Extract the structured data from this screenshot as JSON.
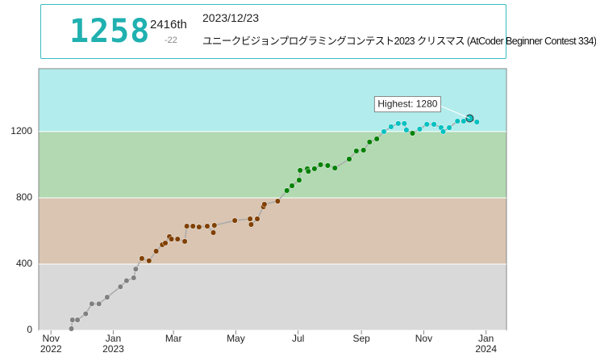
{
  "header": {
    "rating": "1258",
    "rank": "2416th",
    "diff": "-22",
    "date": "2023/12/23",
    "contest": "ユニークビジョンプログラミングコンテスト2023 クリスマス (AtCoder Beginner Contest 334)"
  },
  "chart_data": {
    "type": "line",
    "x": [
      "2022-11-21",
      "2022-11-22",
      "2022-11-27",
      "2022-12-05",
      "2022-12-11",
      "2022-12-18",
      "2022-12-26",
      "2023-01-08",
      "2023-01-14",
      "2023-01-21",
      "2023-01-23",
      "2023-01-29",
      "2023-02-05",
      "2023-02-12",
      "2023-02-18",
      "2023-02-21",
      "2023-02-25",
      "2023-02-27",
      "2023-03-05",
      "2023-03-12",
      "2023-03-14",
      "2023-03-20",
      "2023-03-26",
      "2023-04-03",
      "2023-04-09",
      "2023-04-10",
      "2023-04-30",
      "2023-05-15",
      "2023-05-16",
      "2023-05-22",
      "2023-05-28",
      "2023-05-29",
      "2023-06-11",
      "2023-06-20",
      "2023-06-25",
      "2023-07-02",
      "2023-07-03",
      "2023-07-10",
      "2023-07-11",
      "2023-07-17",
      "2023-07-23",
      "2023-07-30",
      "2023-08-06",
      "2023-08-20",
      "2023-08-27",
      "2023-09-03",
      "2023-09-09",
      "2023-09-16",
      "2023-09-23",
      "2023-09-30",
      "2023-10-07",
      "2023-10-13",
      "2023-10-15",
      "2023-10-21",
      "2023-10-28",
      "2023-11-04",
      "2023-11-11",
      "2023-11-18",
      "2023-11-20",
      "2023-11-26",
      "2023-12-04",
      "2023-12-10",
      "2023-12-16",
      "2023-12-23"
    ],
    "values": [
      10,
      63,
      63,
      100,
      160,
      160,
      200,
      263,
      300,
      317,
      370,
      434,
      420,
      478,
      517,
      527,
      566,
      551,
      551,
      537,
      629,
      629,
      624,
      629,
      590,
      634,
      663,
      673,
      639,
      673,
      746,
      761,
      780,
      844,
      873,
      907,
      966,
      976,
      960,
      976,
      1000,
      995,
      980,
      1034,
      1083,
      1088,
      1137,
      1156,
      1200,
      1229,
      1249,
      1249,
      1210,
      1190,
      1215,
      1244,
      1244,
      1224,
      1200,
      1224,
      1263,
      1263,
      1280,
      1258
    ],
    "xlim": [
      "2022-10-20",
      "2024-01-21"
    ],
    "xticks": [
      {
        "value": "2022-11-01",
        "label": "Nov 2022"
      },
      {
        "value": "2023-01-01",
        "label": "Jan 2023"
      },
      {
        "value": "2023-03-01",
        "label": "Mar"
      },
      {
        "value": "2023-05-01",
        "label": "May"
      },
      {
        "value": "2023-07-01",
        "label": "Jul"
      },
      {
        "value": "2023-09-01",
        "label": "Sep"
      },
      {
        "value": "2023-11-01",
        "label": "Nov"
      },
      {
        "value": "2024-01-01",
        "label": "Jan 2024"
      }
    ],
    "ylim": [
      0,
      1580
    ],
    "yticks": [
      0,
      400,
      800,
      1200
    ],
    "grid": true,
    "annotation": "Highest: 1280",
    "line_color": "#aaaaaa",
    "bands": [
      {
        "from": 0,
        "to": 400,
        "color": "#d9d9d9",
        "point": "#808080"
      },
      {
        "from": 400,
        "to": 800,
        "color": "#d9c5b2",
        "point": "#804000"
      },
      {
        "from": 800,
        "to": 1200,
        "color": "#b2d9b2",
        "point": "#008000"
      },
      {
        "from": 1200,
        "to": 1580,
        "color": "#b2ecec",
        "point": "#00c0c0"
      }
    ]
  }
}
